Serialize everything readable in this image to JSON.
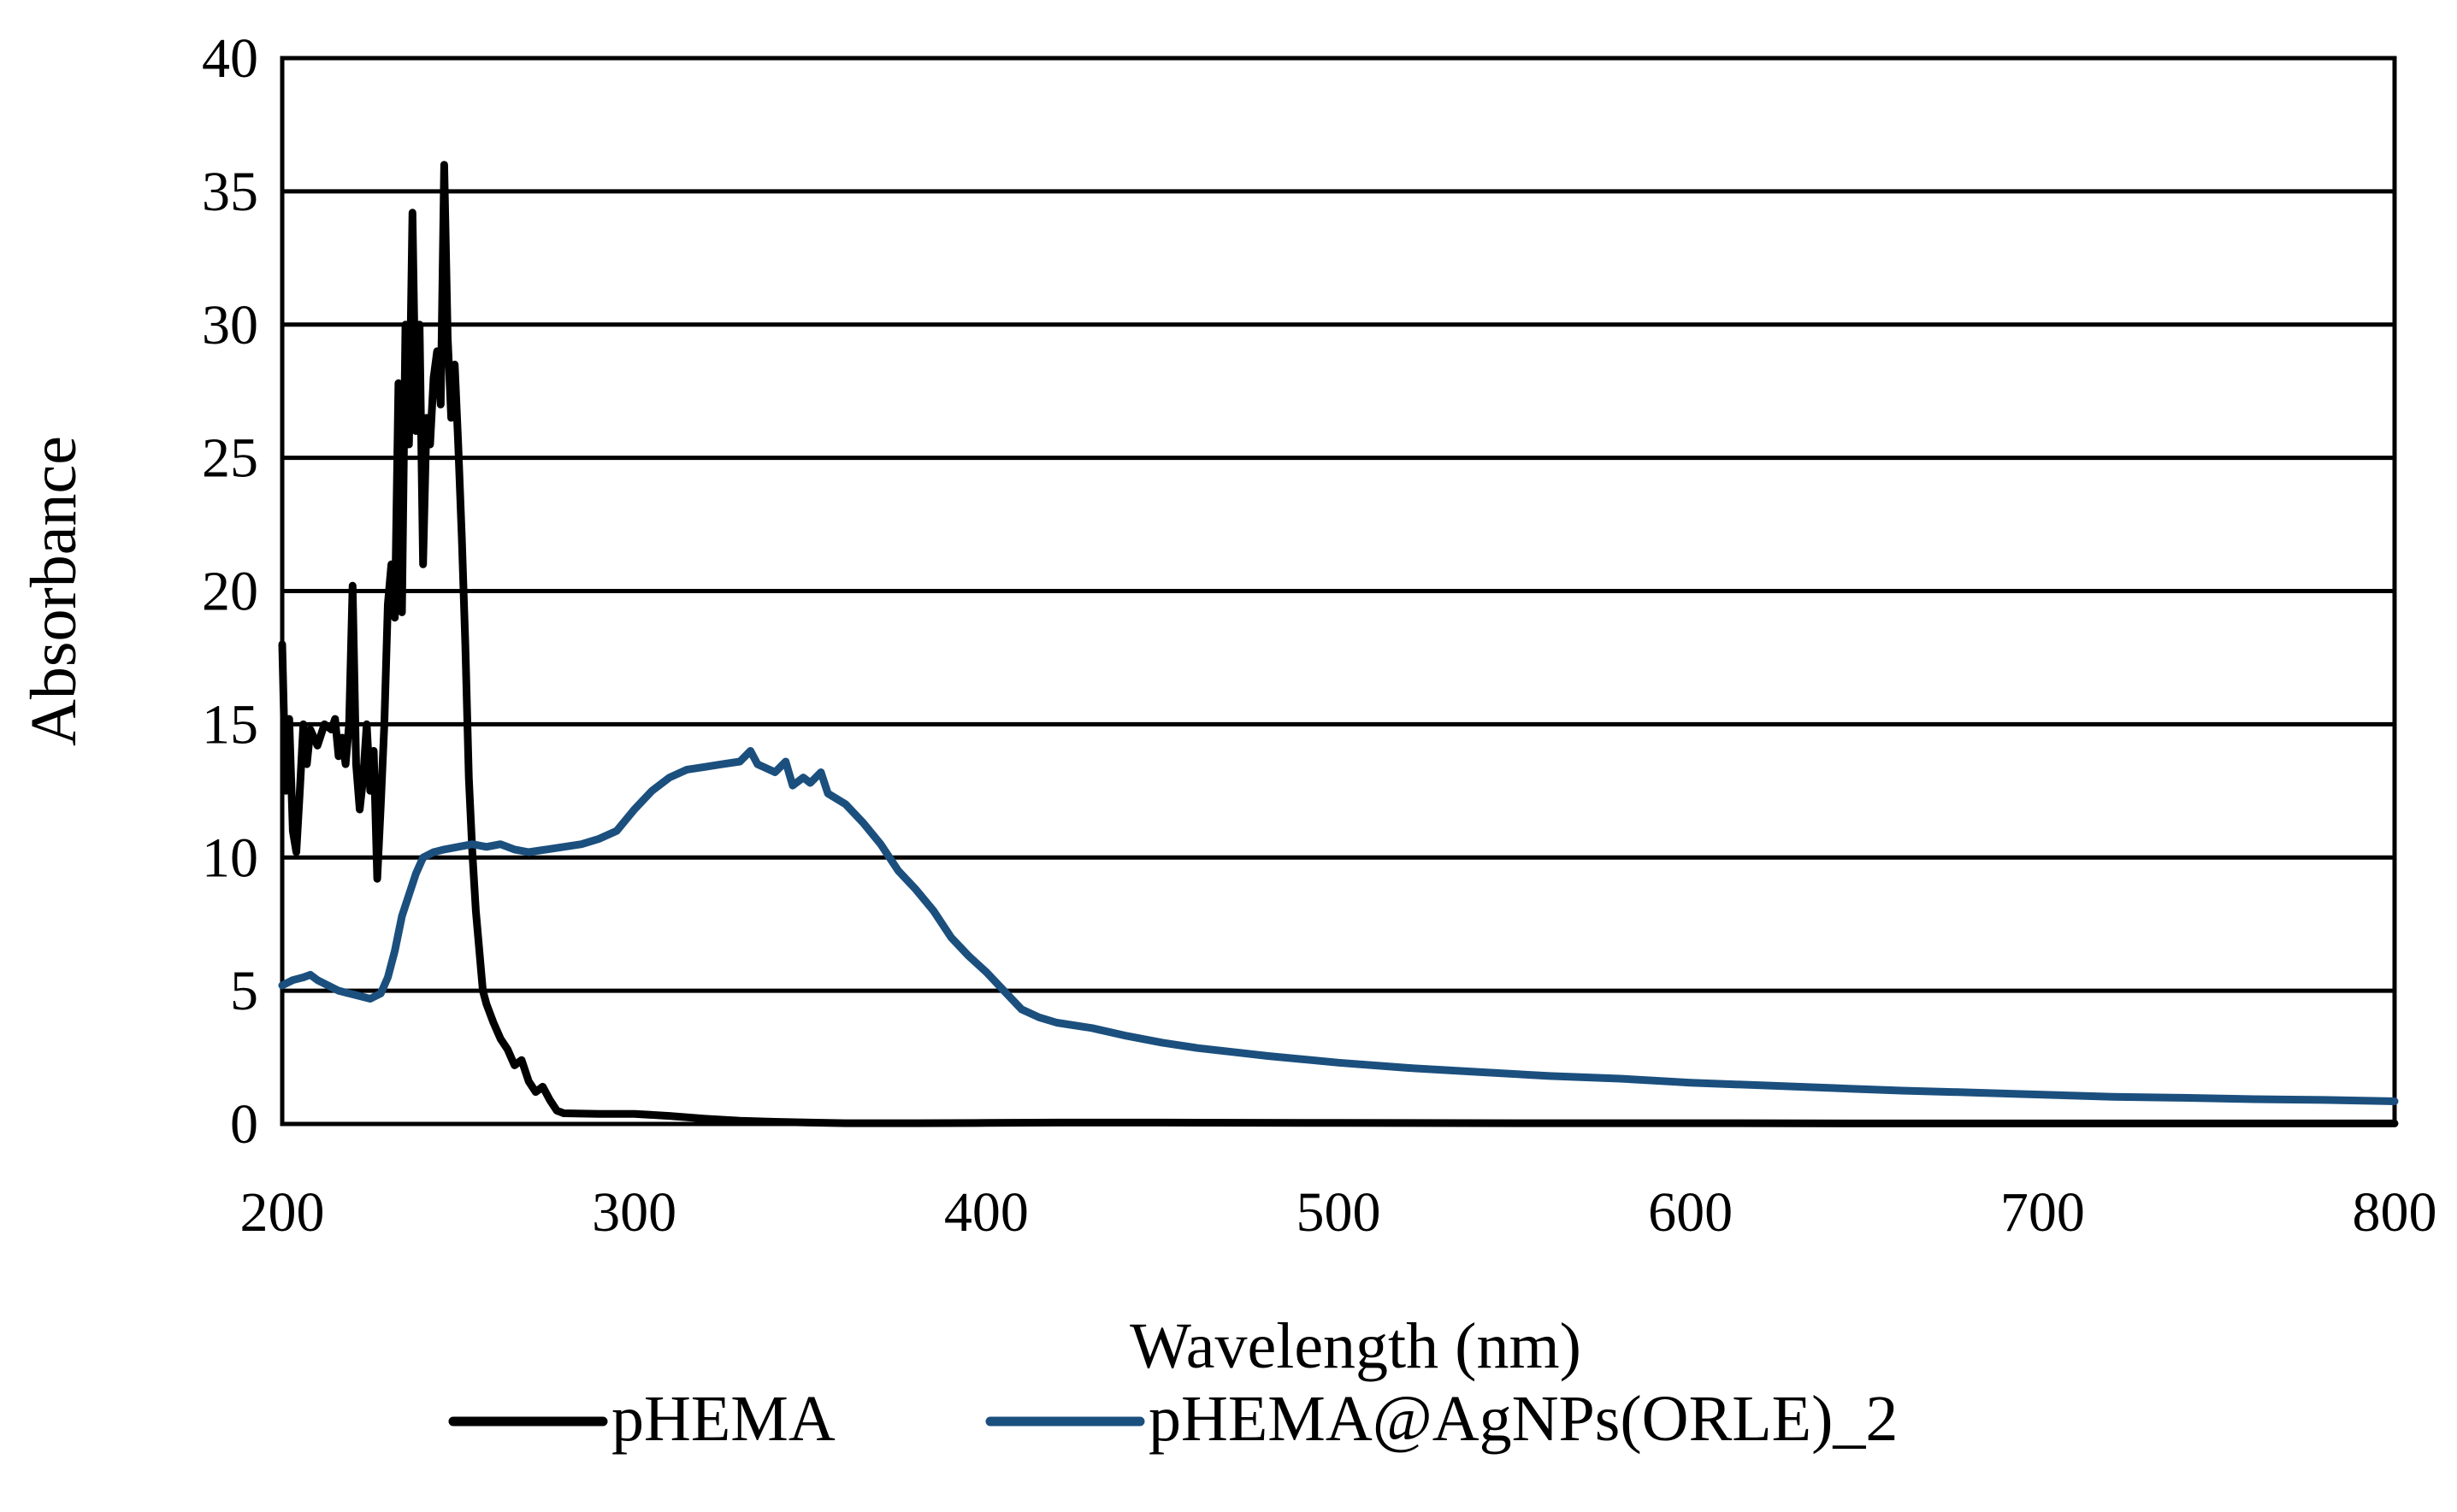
{
  "chart_data": {
    "type": "line",
    "title": "",
    "xlabel": "Wavelength (nm)",
    "ylabel": "Absorbance",
    "xlim": [
      200,
      800
    ],
    "ylim": [
      0,
      40
    ],
    "x_ticks": [
      "200",
      "300",
      "400",
      "500",
      "600",
      "700",
      "800"
    ],
    "y_ticks": [
      "0",
      "5",
      "10",
      "15",
      "20",
      "25",
      "30",
      "35",
      "40"
    ],
    "grid": "horizontal",
    "legend_position": "bottom",
    "series": [
      {
        "name": "pHEMA",
        "color": "#000000",
        "points": [
          [
            200,
            18.0
          ],
          [
            201,
            12.5
          ],
          [
            202,
            15.2
          ],
          [
            203,
            11.0
          ],
          [
            204,
            10.2
          ],
          [
            205,
            12.5
          ],
          [
            206,
            15.0
          ],
          [
            207,
            13.5
          ],
          [
            208,
            14.8
          ],
          [
            210,
            14.2
          ],
          [
            212,
            15.0
          ],
          [
            214,
            14.8
          ],
          [
            215,
            15.2
          ],
          [
            216,
            13.8
          ],
          [
            217,
            14.5
          ],
          [
            218,
            13.5
          ],
          [
            219,
            15.0
          ],
          [
            220,
            20.2
          ],
          [
            221,
            13.5
          ],
          [
            222,
            11.8
          ],
          [
            223,
            13.0
          ],
          [
            224,
            15.0
          ],
          [
            225,
            12.5
          ],
          [
            226,
            14.0
          ],
          [
            227,
            9.2
          ],
          [
            228,
            12.0
          ],
          [
            229,
            15.0
          ],
          [
            230,
            19.5
          ],
          [
            231,
            21.0
          ],
          [
            232,
            19.0
          ],
          [
            233,
            27.8
          ],
          [
            234,
            19.2
          ],
          [
            235,
            30.0
          ],
          [
            236,
            25.5
          ],
          [
            237,
            34.2
          ],
          [
            238,
            26.0
          ],
          [
            239,
            30.0
          ],
          [
            240,
            21.0
          ],
          [
            241,
            26.5
          ],
          [
            242,
            25.5
          ],
          [
            243,
            28.0
          ],
          [
            244,
            29.0
          ],
          [
            245,
            27.0
          ],
          [
            246,
            36.0
          ],
          [
            247,
            29.5
          ],
          [
            248,
            26.5
          ],
          [
            249,
            28.5
          ],
          [
            250,
            25.5
          ],
          [
            251,
            22.0
          ],
          [
            252,
            18.0
          ],
          [
            253,
            13.0
          ],
          [
            254,
            10.2
          ],
          [
            255,
            8.0
          ],
          [
            256,
            6.5
          ],
          [
            257,
            5.0
          ],
          [
            258,
            4.5
          ],
          [
            260,
            3.8
          ],
          [
            262,
            3.2
          ],
          [
            264,
            2.8
          ],
          [
            265,
            2.5
          ],
          [
            266,
            2.2
          ],
          [
            268,
            2.4
          ],
          [
            270,
            1.6
          ],
          [
            272,
            1.2
          ],
          [
            274,
            1.4
          ],
          [
            276,
            0.9
          ],
          [
            278,
            0.5
          ],
          [
            280,
            0.4
          ],
          [
            290,
            0.38
          ],
          [
            300,
            0.38
          ],
          [
            310,
            0.3
          ],
          [
            320,
            0.2
          ],
          [
            330,
            0.12
          ],
          [
            340,
            0.08
          ],
          [
            350,
            0.05
          ],
          [
            360,
            0.03
          ],
          [
            380,
            0.03
          ],
          [
            400,
            0.04
          ],
          [
            420,
            0.05
          ],
          [
            450,
            0.05
          ],
          [
            500,
            0.04
          ],
          [
            550,
            0.03
          ],
          [
            600,
            0.03
          ],
          [
            650,
            0.02
          ],
          [
            700,
            0.02
          ],
          [
            750,
            0.02
          ],
          [
            800,
            0.02
          ]
        ]
      },
      {
        "name": "pHEMA@AgNPs(ORLE)_2",
        "color": "#1B4F7E",
        "points": [
          [
            200,
            5.2
          ],
          [
            203,
            5.4
          ],
          [
            206,
            5.5
          ],
          [
            208,
            5.6
          ],
          [
            210,
            5.4
          ],
          [
            213,
            5.2
          ],
          [
            216,
            5.0
          ],
          [
            219,
            4.9
          ],
          [
            222,
            4.8
          ],
          [
            225,
            4.7
          ],
          [
            228,
            4.9
          ],
          [
            230,
            5.5
          ],
          [
            232,
            6.5
          ],
          [
            234,
            7.8
          ],
          [
            236,
            8.6
          ],
          [
            238,
            9.4
          ],
          [
            240,
            10.0
          ],
          [
            243,
            10.2
          ],
          [
            246,
            10.3
          ],
          [
            250,
            10.4
          ],
          [
            254,
            10.5
          ],
          [
            258,
            10.4
          ],
          [
            262,
            10.5
          ],
          [
            266,
            10.3
          ],
          [
            270,
            10.2
          ],
          [
            275,
            10.3
          ],
          [
            280,
            10.4
          ],
          [
            285,
            10.5
          ],
          [
            290,
            10.7
          ],
          [
            295,
            11.0
          ],
          [
            300,
            11.8
          ],
          [
            305,
            12.5
          ],
          [
            310,
            13.0
          ],
          [
            315,
            13.3
          ],
          [
            320,
            13.4
          ],
          [
            325,
            13.5
          ],
          [
            330,
            13.6
          ],
          [
            333,
            14.0
          ],
          [
            335,
            13.5
          ],
          [
            340,
            13.2
          ],
          [
            343,
            13.6
          ],
          [
            345,
            12.7
          ],
          [
            348,
            13.0
          ],
          [
            350,
            12.8
          ],
          [
            353,
            13.2
          ],
          [
            355,
            12.4
          ],
          [
            360,
            12.0
          ],
          [
            365,
            11.3
          ],
          [
            370,
            10.5
          ],
          [
            375,
            9.5
          ],
          [
            380,
            8.8
          ],
          [
            385,
            8.0
          ],
          [
            390,
            7.0
          ],
          [
            395,
            6.3
          ],
          [
            400,
            5.7
          ],
          [
            405,
            5.0
          ],
          [
            410,
            4.3
          ],
          [
            415,
            4.0
          ],
          [
            420,
            3.8
          ],
          [
            430,
            3.6
          ],
          [
            440,
            3.3
          ],
          [
            450,
            3.05
          ],
          [
            460,
            2.85
          ],
          [
            470,
            2.7
          ],
          [
            480,
            2.55
          ],
          [
            500,
            2.3
          ],
          [
            520,
            2.1
          ],
          [
            540,
            1.95
          ],
          [
            560,
            1.8
          ],
          [
            580,
            1.7
          ],
          [
            600,
            1.55
          ],
          [
            620,
            1.45
          ],
          [
            640,
            1.35
          ],
          [
            660,
            1.25
          ],
          [
            680,
            1.18
          ],
          [
            700,
            1.1
          ],
          [
            720,
            1.02
          ],
          [
            740,
            0.98
          ],
          [
            760,
            0.93
          ],
          [
            780,
            0.9
          ],
          [
            800,
            0.85
          ]
        ]
      }
    ]
  }
}
